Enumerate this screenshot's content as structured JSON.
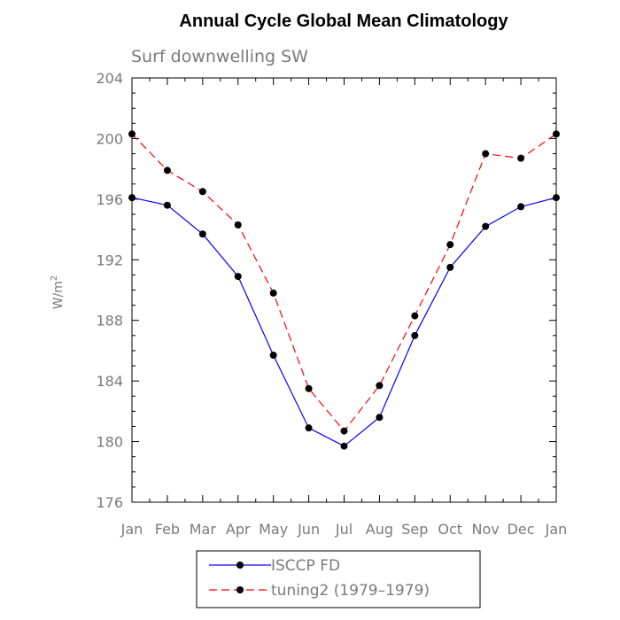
{
  "chart_data": {
    "type": "line",
    "title": "Annual Cycle Global Mean Climatology",
    "subtitle": "Surf downwelling SW",
    "xlabel": "",
    "ylabel": "W/m",
    "ylabel_superscript": "2",
    "categories": [
      "Jan",
      "Feb",
      "Mar",
      "Apr",
      "May",
      "Jun",
      "Jul",
      "Aug",
      "Sep",
      "Oct",
      "Nov",
      "Dec",
      "Jan"
    ],
    "ylim": [
      176,
      204
    ],
    "yticks": [
      "176",
      "180",
      "184",
      "188",
      "192",
      "196",
      "200",
      "204"
    ],
    "grid": false,
    "legend_position": "bottom-center",
    "series": [
      {
        "name": "ISCCP FD",
        "color": "#0000ff",
        "dash": "solid",
        "marker": "filled-circle",
        "values": [
          196.1,
          195.6,
          193.7,
          190.9,
          185.7,
          180.9,
          179.7,
          181.6,
          187.0,
          191.5,
          194.2,
          195.5,
          196.1
        ]
      },
      {
        "name": "tuning2 (1979–1979)",
        "color": "#ff0000",
        "dash": "dashed",
        "marker": "filled-circle",
        "values": [
          200.3,
          197.9,
          196.5,
          194.3,
          189.8,
          183.5,
          180.7,
          183.7,
          188.3,
          193.0,
          199.0,
          198.7,
          200.3
        ]
      }
    ]
  }
}
